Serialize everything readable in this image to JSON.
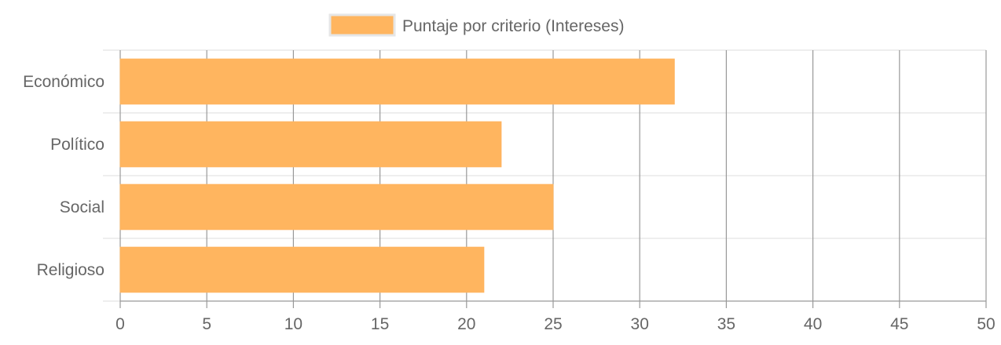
{
  "chart_data": {
    "type": "bar",
    "orientation": "horizontal",
    "categories": [
      "Económico",
      "Político",
      "Social",
      "Religioso"
    ],
    "series": [
      {
        "name": "Puntaje por criterio (Intereses)",
        "values": [
          32,
          22,
          25,
          21
        ]
      }
    ],
    "xlim": [
      0,
      50
    ],
    "x_ticks": [
      "0",
      "5",
      "10",
      "15",
      "20",
      "25",
      "30",
      "35",
      "40",
      "45",
      "50"
    ],
    "grid": true,
    "legend_position": "top",
    "colors": {
      "bar_fill": "#ffb55f",
      "bar_stroke": "#ffb55f",
      "vertical_grid": "#999999",
      "horizontal_grid": "#dcdcdc",
      "text": "#666666"
    }
  }
}
